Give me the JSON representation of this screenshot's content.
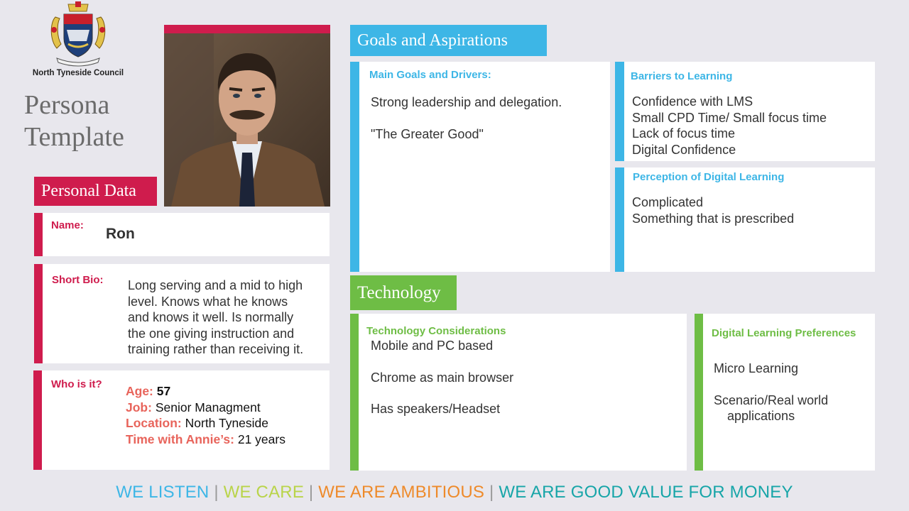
{
  "header": {
    "council_name": "North Tyneside Council",
    "title_line1": "Persona",
    "title_line2": "Template"
  },
  "personal": {
    "section_title": "Personal Data",
    "name_label": "Name:",
    "name_value": "Ron",
    "bio_label": "Short Bio:",
    "bio_lines": [
      "Long serving and a mid to high",
      "level. Knows what he knows",
      "and knows it well. Is normally",
      "the one giving instruction and",
      "training rather than receiving it."
    ],
    "who_label": "Who is it?",
    "age_label": "Age:",
    "age_value": "57",
    "job_label": "Job:",
    "job_value": "Senior Managment",
    "location_label": "Location:",
    "location_value": "North Tyneside",
    "time_label": "Time with Annie’s:",
    "time_value": "21 years"
  },
  "goals": {
    "section_title": "Goals and Aspirations",
    "main_label": "Main Goals and Drivers:",
    "main_items": [
      "Strong leadership and delegation.",
      "\"The Greater Good\""
    ],
    "barriers_label": "Barriers to Learning",
    "barriers_items": [
      "Confidence with LMS",
      "Small CPD Time/ Small focus time",
      "Lack of focus time",
      "Digital Confidence"
    ],
    "perception_label": "Perception of Digital Learning",
    "perception_items": [
      "Complicated",
      "Something that is prescribed"
    ]
  },
  "technology": {
    "section_title": "Technology",
    "considerations_label": "Technology Considerations",
    "considerations_items": [
      "Mobile and PC based",
      "Chrome as main browser",
      "Has speakers/Headset"
    ],
    "preferences_label": "Digital Learning Preferences",
    "preferences_items": [
      "Micro Learning",
      "Scenario/Real world",
      "applications"
    ]
  },
  "footer": {
    "values": [
      "WE LISTEN",
      "WE CARE",
      "WE ARE AMBITIOUS",
      "WE ARE GOOD VALUE FOR MONEY"
    ],
    "separator": "|",
    "colors": [
      "#3db6e6",
      "#b9d44a",
      "#ee8a2a",
      "#17a5a8"
    ]
  },
  "colors": {
    "personal_accent": "#cf1c4d",
    "goals_accent": "#3db6e6",
    "tech_accent": "#6ebd45",
    "label_coral": "#e8645b",
    "background": "#e8e7ed"
  },
  "icons": {
    "crest": "council-crest-icon",
    "photo": "persona-photo"
  }
}
